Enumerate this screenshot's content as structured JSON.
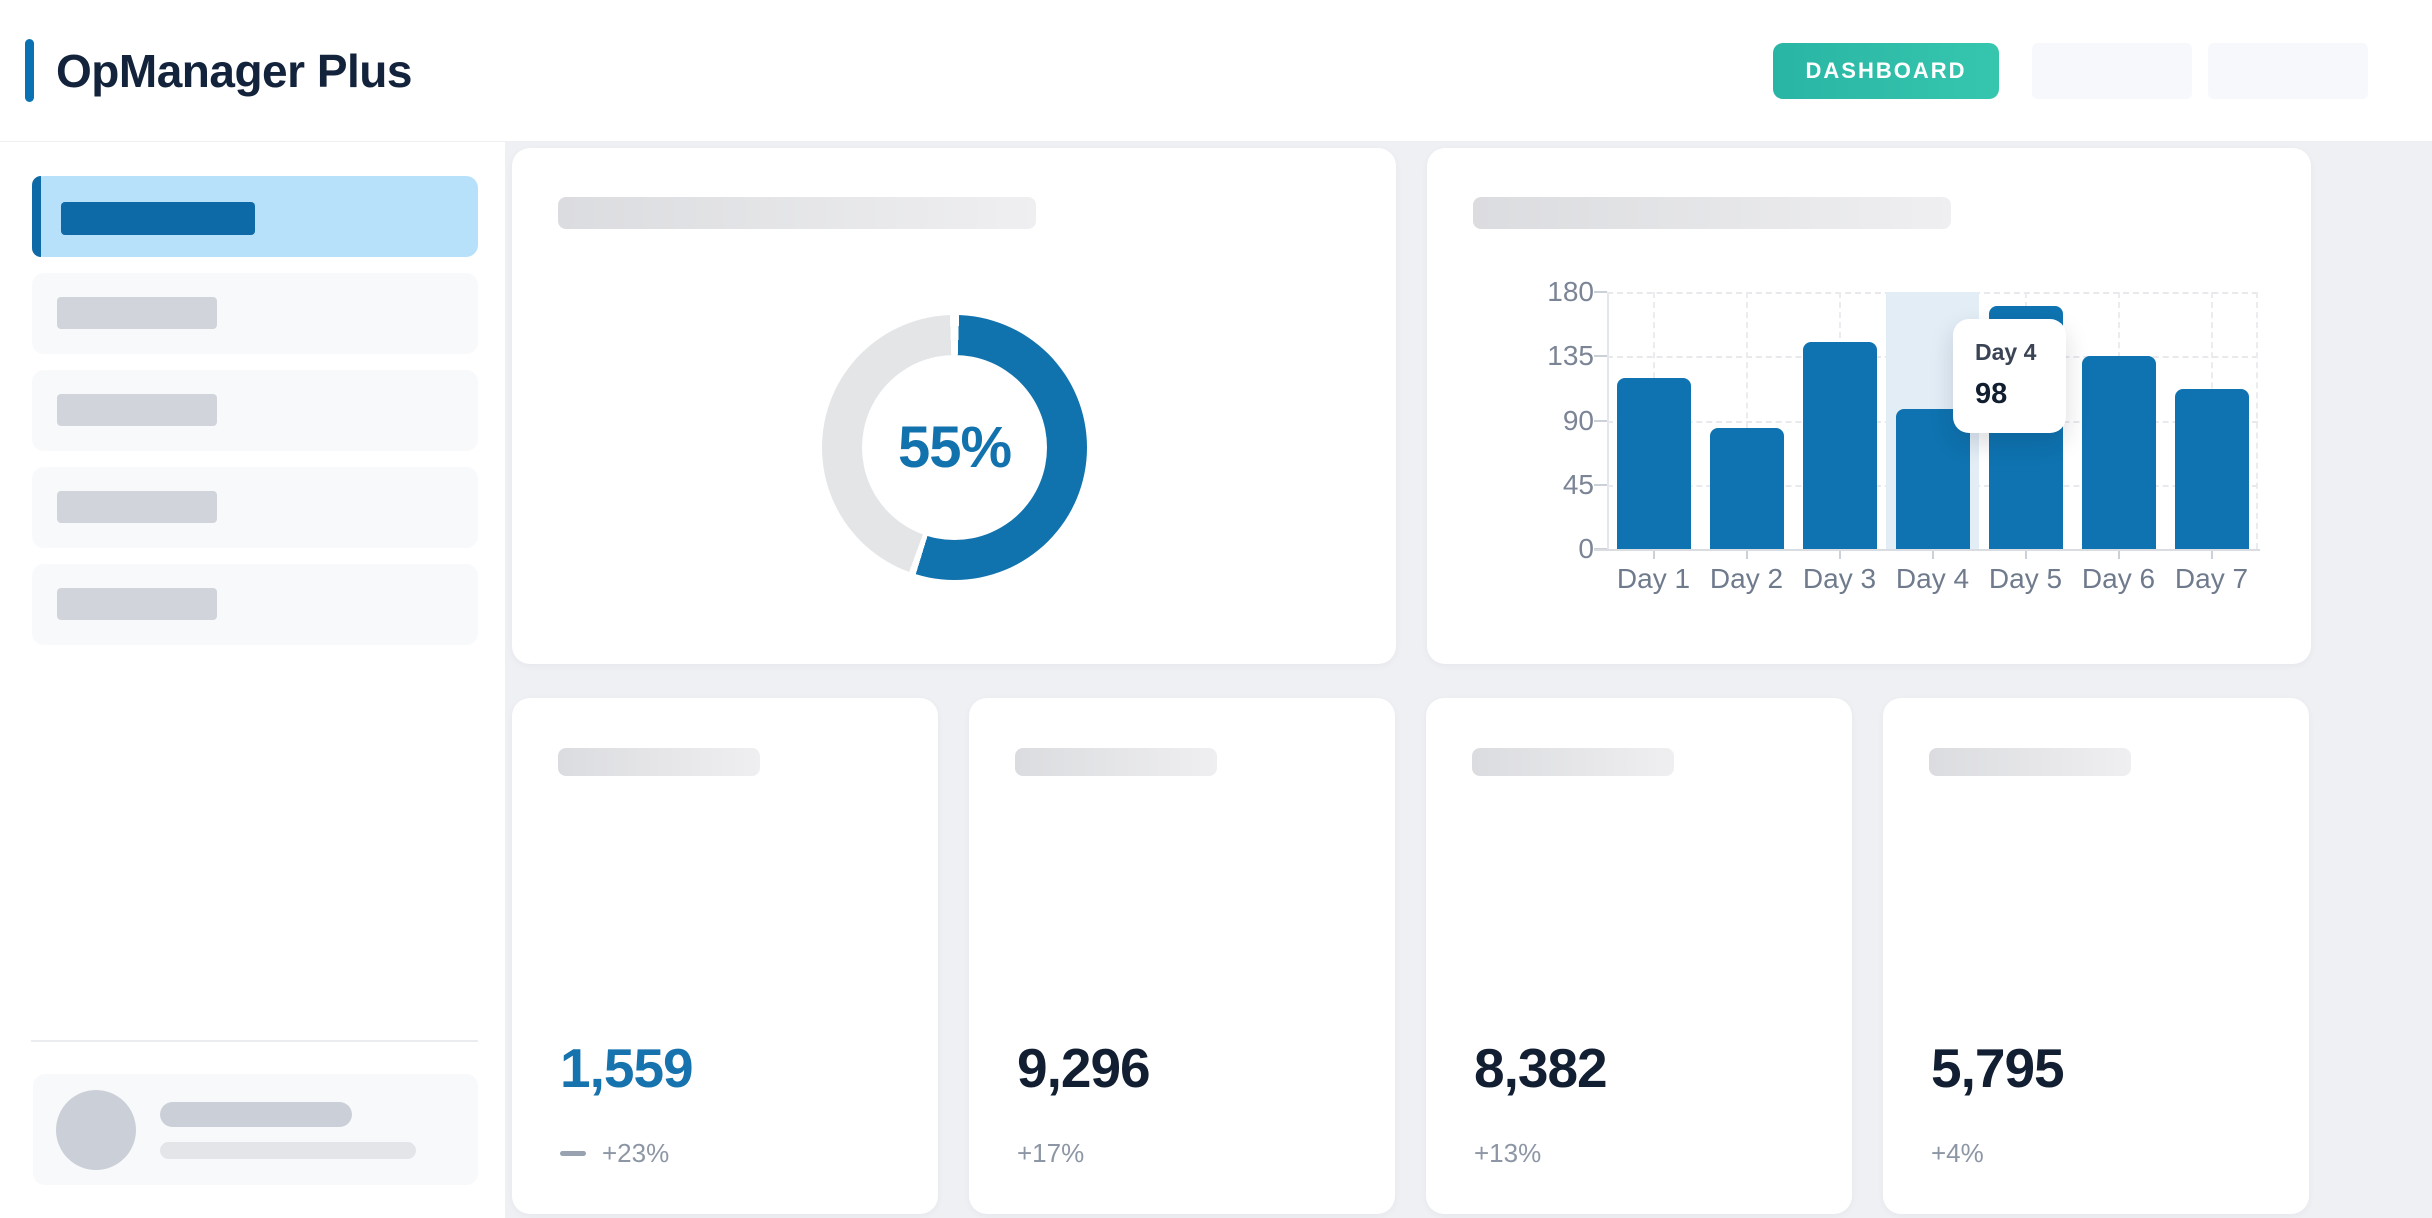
{
  "header": {
    "app_title": "OpManager Plus",
    "dashboard_button": "DASHBOARD"
  },
  "colors": {
    "accent_blue": "#1272ad",
    "bar_blue": "#0e73b0",
    "active_nav_bg": "#b7e1fa",
    "active_nav_fg": "#0d6aa7",
    "teal_button": "#2dbfab",
    "highlight_band": "#e3edf6",
    "donut_track": "#e4e5e7"
  },
  "chart_data": [
    {
      "type": "pie",
      "subtype": "donut",
      "values": [
        55,
        45
      ],
      "colors": [
        "#1173ae",
        "#e4e5e7"
      ],
      "center_text": "55%",
      "legend_position": "none"
    },
    {
      "type": "bar",
      "categories": [
        "Day 1",
        "Day 2",
        "Day 3",
        "Day 4",
        "Day 5",
        "Day 6",
        "Day 7"
      ],
      "values": [
        120,
        85,
        145,
        98,
        170,
        135,
        112
      ],
      "ylim": [
        0,
        180
      ],
      "yticks": [
        0,
        45,
        90,
        135,
        180
      ],
      "bar_color": "#0e73b0",
      "grid": true,
      "highlighted_index": 3,
      "tooltip": {
        "title": "Day 4",
        "value": "98"
      }
    }
  ],
  "stat_cards": [
    {
      "value": "1,559",
      "change": "+23%"
    },
    {
      "value": "9,296",
      "change": "+17%"
    },
    {
      "value": "8,382",
      "change": "+13%"
    },
    {
      "value": "5,795",
      "change": "+4%"
    }
  ]
}
